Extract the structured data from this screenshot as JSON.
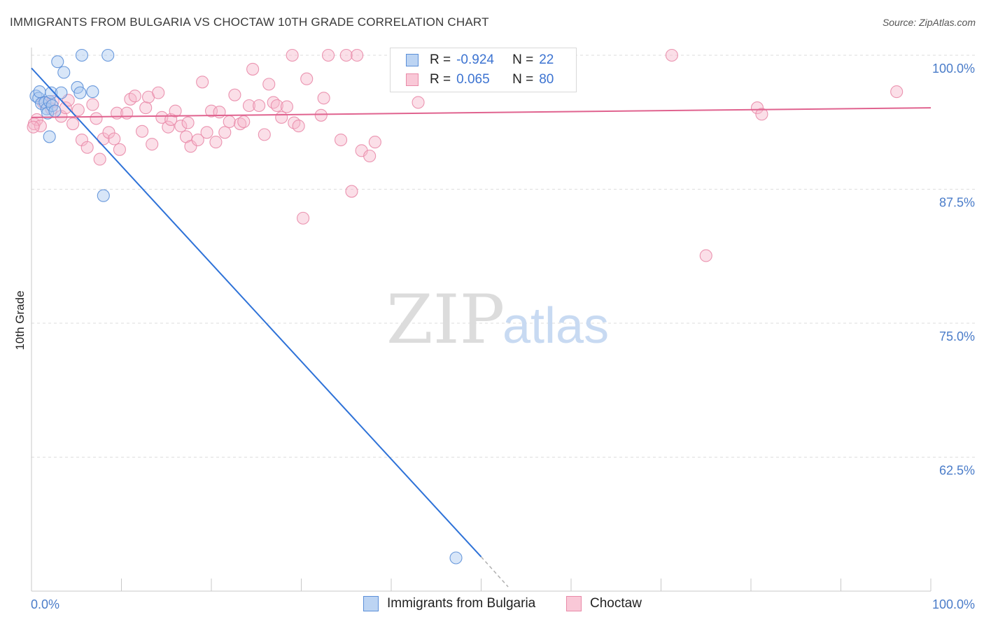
{
  "title": "IMMIGRANTS FROM BULGARIA VS CHOCTAW 10TH GRADE CORRELATION CHART",
  "source": "Source: ZipAtlas.com",
  "watermark": {
    "part1": "ZIP",
    "part2": "atlas"
  },
  "colors": {
    "blue_fill": "#a9c8f0",
    "blue_stroke": "#5b8fd8",
    "blue_line": "#2e72d8",
    "pink_fill": "#f6b9cc",
    "pink_stroke": "#e98aa8",
    "pink_line": "#e0638f",
    "axis_label": "#4a7cc9"
  },
  "legend": {
    "rows": [
      {
        "r_label": "R =",
        "r_value": "-0.924",
        "n_label": "N =",
        "n_value": "22"
      },
      {
        "r_label": "R =",
        "r_value": "0.065",
        "n_label": "N =",
        "n_value": "80"
      }
    ]
  },
  "bottom_legend": {
    "items": [
      {
        "label": "Immigrants from Bulgaria"
      },
      {
        "label": "Choctaw"
      }
    ]
  },
  "chart_data": {
    "type": "scatter",
    "title": "IMMIGRANTS FROM BULGARIA VS CHOCTAW 10TH GRADE CORRELATION CHART",
    "xlabel": "",
    "ylabel": "10th Grade",
    "xlim": [
      0,
      100
    ],
    "ylim": [
      50,
      100
    ],
    "x_tick_labels": [
      "0.0%",
      "100.0%"
    ],
    "y_tick_labels": [
      "100.0%",
      "87.5%",
      "75.0%",
      "62.5%"
    ],
    "y_ticks": [
      100,
      87.5,
      75,
      62.5
    ],
    "grid": "horizontal dashed",
    "legend_position": "top-center",
    "series": [
      {
        "name": "Immigrants from Bulgaria",
        "color": "#a9c8f0",
        "r": -0.924,
        "n": 22,
        "trend": {
          "x": [
            0,
            50.0
          ],
          "y": [
            98.8,
            53.2
          ]
        },
        "trend_dashed_extension": {
          "x": [
            50.0,
            53.0
          ],
          "y": [
            53.2,
            50.4
          ]
        },
        "points": [
          {
            "x": 0.5,
            "y": 96.2
          },
          {
            "x": 0.8,
            "y": 96.0
          },
          {
            "x": 0.9,
            "y": 96.6
          },
          {
            "x": 1.1,
            "y": 95.5
          },
          {
            "x": 1.5,
            "y": 95.6
          },
          {
            "x": 1.7,
            "y": 95.0
          },
          {
            "x": 1.8,
            "y": 94.6
          },
          {
            "x": 2.0,
            "y": 95.7
          },
          {
            "x": 2.0,
            "y": 92.4
          },
          {
            "x": 2.2,
            "y": 96.5
          },
          {
            "x": 2.3,
            "y": 95.3
          },
          {
            "x": 2.6,
            "y": 94.8
          },
          {
            "x": 2.9,
            "y": 99.4
          },
          {
            "x": 3.3,
            "y": 96.5
          },
          {
            "x": 3.6,
            "y": 98.4
          },
          {
            "x": 5.1,
            "y": 97.0
          },
          {
            "x": 5.4,
            "y": 96.5
          },
          {
            "x": 5.6,
            "y": 100.0
          },
          {
            "x": 6.8,
            "y": 96.6
          },
          {
            "x": 8.0,
            "y": 86.9
          },
          {
            "x": 8.5,
            "y": 100.0
          },
          {
            "x": 47.2,
            "y": 53.1
          }
        ]
      },
      {
        "name": "Choctaw",
        "color": "#f6b9cc",
        "r": 0.065,
        "n": 80,
        "trend": {
          "x": [
            0,
            100
          ],
          "y": [
            94.2,
            95.1
          ]
        },
        "points": [
          {
            "x": 0.3,
            "y": 93.6
          },
          {
            "x": 0.6,
            "y": 94.0
          },
          {
            "x": 1.0,
            "y": 93.4
          },
          {
            "x": 1.3,
            "y": 95.6
          },
          {
            "x": 2.2,
            "y": 95.0
          },
          {
            "x": 2.4,
            "y": 95.7
          },
          {
            "x": 3.3,
            "y": 94.3
          },
          {
            "x": 3.8,
            "y": 95.1
          },
          {
            "x": 4.1,
            "y": 95.8
          },
          {
            "x": 4.6,
            "y": 93.6
          },
          {
            "x": 5.2,
            "y": 94.9
          },
          {
            "x": 5.6,
            "y": 92.1
          },
          {
            "x": 6.2,
            "y": 91.4
          },
          {
            "x": 6.8,
            "y": 95.4
          },
          {
            "x": 7.2,
            "y": 94.1
          },
          {
            "x": 7.6,
            "y": 90.3
          },
          {
            "x": 8.0,
            "y": 92.2
          },
          {
            "x": 8.6,
            "y": 92.8
          },
          {
            "x": 9.2,
            "y": 92.2
          },
          {
            "x": 9.8,
            "y": 91.2
          },
          {
            "x": 9.5,
            "y": 94.6
          },
          {
            "x": 10.6,
            "y": 94.6
          },
          {
            "x": 11.0,
            "y": 95.9
          },
          {
            "x": 11.5,
            "y": 96.2
          },
          {
            "x": 12.3,
            "y": 92.9
          },
          {
            "x": 12.7,
            "y": 95.1
          },
          {
            "x": 13.0,
            "y": 96.1
          },
          {
            "x": 13.4,
            "y": 91.7
          },
          {
            "x": 14.1,
            "y": 96.5
          },
          {
            "x": 14.5,
            "y": 94.2
          },
          {
            "x": 15.2,
            "y": 93.3
          },
          {
            "x": 15.5,
            "y": 94.0
          },
          {
            "x": 16.0,
            "y": 94.8
          },
          {
            "x": 16.6,
            "y": 93.4
          },
          {
            "x": 17.2,
            "y": 92.4
          },
          {
            "x": 17.4,
            "y": 93.7
          },
          {
            "x": 17.7,
            "y": 91.5
          },
          {
            "x": 18.5,
            "y": 92.1
          },
          {
            "x": 19.0,
            "y": 97.5
          },
          {
            "x": 19.5,
            "y": 92.8
          },
          {
            "x": 20.0,
            "y": 94.8
          },
          {
            "x": 20.5,
            "y": 91.9
          },
          {
            "x": 20.9,
            "y": 94.7
          },
          {
            "x": 21.5,
            "y": 92.8
          },
          {
            "x": 22.0,
            "y": 93.8
          },
          {
            "x": 22.6,
            "y": 96.3
          },
          {
            "x": 23.2,
            "y": 93.6
          },
          {
            "x": 23.6,
            "y": 93.8
          },
          {
            "x": 24.2,
            "y": 95.3
          },
          {
            "x": 24.6,
            "y": 98.7
          },
          {
            "x": 25.3,
            "y": 95.3
          },
          {
            "x": 25.9,
            "y": 92.6
          },
          {
            "x": 26.4,
            "y": 97.3
          },
          {
            "x": 26.9,
            "y": 95.6
          },
          {
            "x": 27.3,
            "y": 95.3
          },
          {
            "x": 27.8,
            "y": 94.2
          },
          {
            "x": 28.4,
            "y": 95.2
          },
          {
            "x": 29.0,
            "y": 100.0
          },
          {
            "x": 29.2,
            "y": 93.7
          },
          {
            "x": 29.7,
            "y": 93.4
          },
          {
            "x": 30.2,
            "y": 84.8
          },
          {
            "x": 30.6,
            "y": 97.8
          },
          {
            "x": 32.2,
            "y": 94.4
          },
          {
            "x": 32.5,
            "y": 96.0
          },
          {
            "x": 33.0,
            "y": 100.0
          },
          {
            "x": 34.4,
            "y": 92.1
          },
          {
            "x": 35.0,
            "y": 100.0
          },
          {
            "x": 35.6,
            "y": 87.3
          },
          {
            "x": 36.2,
            "y": 100.0
          },
          {
            "x": 36.7,
            "y": 91.1
          },
          {
            "x": 37.6,
            "y": 90.6
          },
          {
            "x": 38.2,
            "y": 91.9
          },
          {
            "x": 43.0,
            "y": 95.6
          },
          {
            "x": 49.5,
            "y": 100.0
          },
          {
            "x": 71.2,
            "y": 100.0
          },
          {
            "x": 75.0,
            "y": 81.3
          },
          {
            "x": 80.7,
            "y": 95.1
          },
          {
            "x": 81.2,
            "y": 94.5
          },
          {
            "x": 96.2,
            "y": 96.6
          },
          {
            "x": 0.2,
            "y": 93.3
          }
        ]
      }
    ]
  }
}
